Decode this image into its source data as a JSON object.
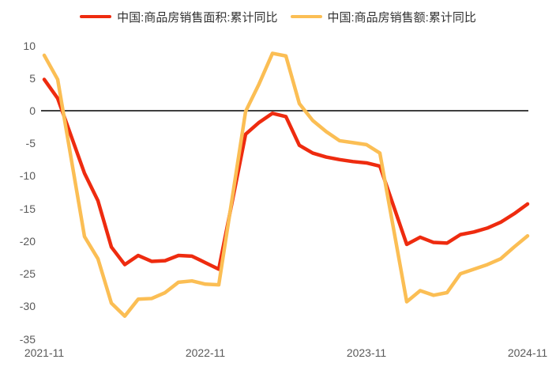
{
  "colors": {
    "background": "#FFFFFF",
    "series_area_red": "#EE2B0F",
    "series_value_yellow": "#FBBE54",
    "zero_line": "#3F3F3F",
    "axis_text": "#595959",
    "legend_text": "#333333"
  },
  "legend": {
    "items": [
      {
        "label": "中国:商品房销售面积:累计同比",
        "swatch_color": "#EE2B0F"
      },
      {
        "label": "中国:商品房销售额:累计同比",
        "swatch_color": "#FBBE54"
      }
    ]
  },
  "chart_data": {
    "type": "line",
    "title": "",
    "xlabel": "",
    "ylabel": "",
    "unit": "%",
    "ylim": [
      -35,
      10
    ],
    "grid": false,
    "zero_line": true,
    "legend_position": "top",
    "x_axis_note": "monthly cumulative YoY, January omitted, time-linear axis",
    "y_ticks": [
      10,
      5,
      0,
      -5,
      -10,
      -15,
      -20,
      -25,
      -30,
      -35
    ],
    "x_ticks": [
      "2021-11",
      "2022-11",
      "2023-11",
      "2024-11"
    ],
    "x": [
      "2021-11",
      "2021-12",
      "2022-02",
      "2022-03",
      "2022-04",
      "2022-05",
      "2022-06",
      "2022-07",
      "2022-08",
      "2022-09",
      "2022-10",
      "2022-11",
      "2022-12",
      "2023-02",
      "2023-03",
      "2023-04",
      "2023-05",
      "2023-06",
      "2023-07",
      "2023-08",
      "2023-09",
      "2023-10",
      "2023-11",
      "2023-12",
      "2024-02",
      "2024-03",
      "2024-04",
      "2024-05",
      "2024-06",
      "2024-07",
      "2024-08",
      "2024-09",
      "2024-10",
      "2024-11"
    ],
    "series": [
      {
        "name": "中国:商品房销售面积:累计同比",
        "color": "#EE2B0F",
        "values": [
          4.8,
          1.9,
          -9.6,
          -13.8,
          -20.9,
          -23.6,
          -22.2,
          -23.1,
          -23.0,
          -22.2,
          -22.3,
          -23.3,
          -24.3,
          -3.6,
          -1.8,
          -0.4,
          -0.9,
          -5.3,
          -6.5,
          -7.1,
          -7.5,
          -7.8,
          -8.0,
          -8.5,
          -20.5,
          -19.4,
          -20.2,
          -20.3,
          -19.0,
          -18.6,
          -18.0,
          -17.1,
          -15.8,
          -14.3
        ]
      },
      {
        "name": "中国:商品房销售额:累计同比",
        "color": "#FBBE54",
        "values": [
          8.5,
          4.8,
          -19.3,
          -22.7,
          -29.5,
          -31.5,
          -28.9,
          -28.8,
          -27.9,
          -26.3,
          -26.1,
          -26.6,
          -26.7,
          -0.1,
          4.1,
          8.8,
          8.4,
          1.1,
          -1.5,
          -3.2,
          -4.6,
          -4.9,
          -5.2,
          -6.5,
          -29.3,
          -27.6,
          -28.3,
          -27.9,
          -25.0,
          -24.3,
          -23.6,
          -22.7,
          -20.9,
          -19.2
        ]
      }
    ]
  }
}
